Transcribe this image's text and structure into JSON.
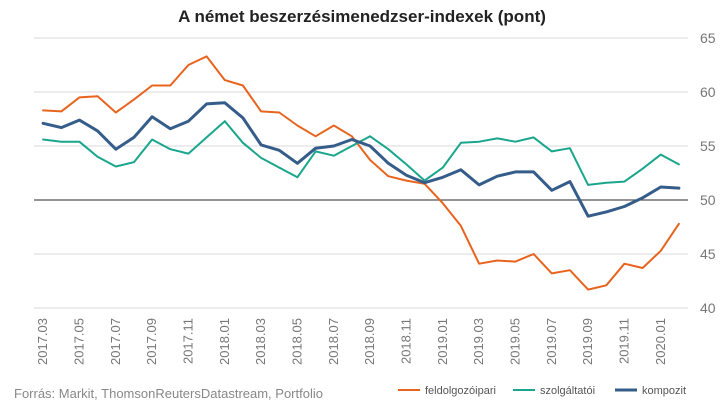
{
  "chart_data": {
    "type": "line",
    "title": "A német beszerzésimenedzser-indexek (pont)",
    "source": "Forrás: Markit, ThomsonReutersDatastream, Portfolio",
    "x_ticks": [
      "2017.03",
      "2017.05",
      "2017.07",
      "2017.09",
      "2017.11",
      "2018.01",
      "2018.03",
      "2018.05",
      "2018.07",
      "2018.09",
      "2018.11",
      "2019.01",
      "2019.03",
      "2019.05",
      "2019.07",
      "2019.09",
      "2019.11",
      "2020.01"
    ],
    "y_ticks": [
      "65",
      "60",
      "55",
      "50",
      "45",
      "40"
    ],
    "ylim": [
      40,
      65
    ],
    "baseline": 50,
    "legend_position": "bottom-right",
    "x": [
      "2017.03",
      "2017.04",
      "2017.05",
      "2017.06",
      "2017.07",
      "2017.08",
      "2017.09",
      "2017.10",
      "2017.11",
      "2017.12",
      "2018.01",
      "2018.02",
      "2018.03",
      "2018.04",
      "2018.05",
      "2018.06",
      "2018.07",
      "2018.08",
      "2018.09",
      "2018.10",
      "2018.11",
      "2018.12",
      "2019.01",
      "2019.02",
      "2019.03",
      "2019.04",
      "2019.05",
      "2019.06",
      "2019.07",
      "2019.08",
      "2019.09",
      "2019.10",
      "2019.11",
      "2019.12",
      "2020.01",
      "2020.02"
    ],
    "series": [
      {
        "name": "feldolgozóipari",
        "color": "#e8641e",
        "values": [
          58.3,
          58.2,
          59.5,
          59.6,
          58.1,
          59.3,
          60.6,
          60.6,
          62.5,
          63.3,
          61.1,
          60.6,
          58.2,
          58.1,
          56.9,
          55.9,
          56.9,
          55.9,
          53.7,
          52.2,
          51.8,
          51.5,
          49.7,
          47.6,
          44.1,
          44.4,
          44.3,
          45.0,
          43.2,
          43.5,
          41.7,
          42.1,
          44.1,
          43.7,
          45.3,
          47.8
        ]
      },
      {
        "name": "szolgáltatói",
        "color": "#1aa68c",
        "values": [
          55.6,
          55.4,
          55.4,
          54.0,
          53.1,
          53.5,
          55.6,
          54.7,
          54.3,
          55.8,
          57.3,
          55.3,
          53.9,
          53.0,
          52.1,
          54.5,
          54.1,
          55.0,
          55.9,
          54.7,
          53.3,
          51.8,
          53.0,
          55.3,
          55.4,
          55.7,
          55.4,
          55.8,
          54.5,
          54.8,
          51.4,
          51.6,
          51.7,
          52.9,
          54.2,
          53.3
        ]
      },
      {
        "name": "kompozit",
        "color": "#355d8a",
        "values": [
          57.1,
          56.7,
          57.4,
          56.4,
          54.7,
          55.8,
          57.7,
          56.6,
          57.3,
          58.9,
          59.0,
          57.6,
          55.1,
          54.6,
          53.4,
          54.8,
          55.0,
          55.6,
          55.0,
          53.4,
          52.3,
          51.6,
          52.1,
          52.8,
          51.4,
          52.2,
          52.6,
          52.6,
          50.9,
          51.7,
          48.5,
          48.9,
          49.4,
          50.2,
          51.2,
          51.1
        ]
      }
    ]
  }
}
